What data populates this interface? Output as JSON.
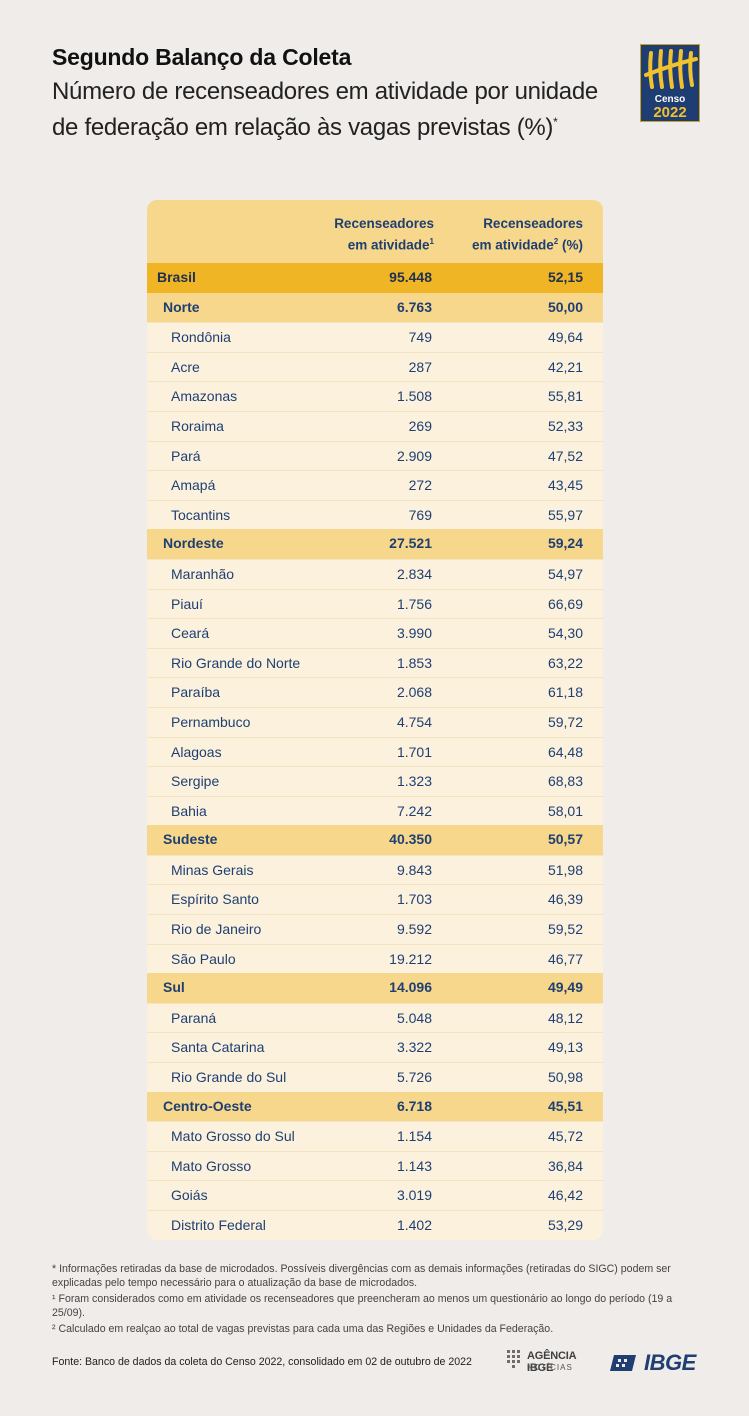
{
  "header": {
    "title": "Segundo Balanço da Coleta",
    "subtitle_line1": "Número de recenseadores em atividade por unidade",
    "subtitle_line2": "de federação em relação às vagas previstas (%)",
    "subtitle_mark": "*"
  },
  "logo": {
    "text": "Censo",
    "year": "2022"
  },
  "chart_data": {
    "type": "table",
    "columns": [
      {
        "label": "Recenseadores",
        "label2": "em atividade",
        "mark": "1",
        "suffix": ""
      },
      {
        "label": "Recenseadores",
        "label2": "em atividade",
        "mark": "2",
        "suffix": " (%)"
      }
    ],
    "rows": [
      {
        "level": "country",
        "name": "Brasil",
        "v1": "95.448",
        "v2": "52,15"
      },
      {
        "level": "region",
        "name": "Norte",
        "v1": "6.763",
        "v2": "50,00"
      },
      {
        "level": "state",
        "name": "Rondônia",
        "v1": "749",
        "v2": "49,64"
      },
      {
        "level": "state",
        "name": "Acre",
        "v1": "287",
        "v2": "42,21"
      },
      {
        "level": "state",
        "name": "Amazonas",
        "v1": "1.508",
        "v2": "55,81"
      },
      {
        "level": "state",
        "name": "Roraima",
        "v1": "269",
        "v2": "52,33"
      },
      {
        "level": "state",
        "name": "Pará",
        "v1": "2.909",
        "v2": "47,52"
      },
      {
        "level": "state",
        "name": "Amapá",
        "v1": "272",
        "v2": "43,45"
      },
      {
        "level": "state",
        "name": "Tocantins",
        "v1": "769",
        "v2": "55,97"
      },
      {
        "level": "region",
        "name": "Nordeste",
        "v1": "27.521",
        "v2": "59,24"
      },
      {
        "level": "state",
        "name": "Maranhão",
        "v1": "2.834",
        "v2": "54,97"
      },
      {
        "level": "state",
        "name": "Piauí",
        "v1": "1.756",
        "v2": "66,69"
      },
      {
        "level": "state",
        "name": "Ceará",
        "v1": "3.990",
        "v2": "54,30"
      },
      {
        "level": "state",
        "name": "Rio Grande do Norte",
        "v1": "1.853",
        "v2": "63,22"
      },
      {
        "level": "state",
        "name": "Paraíba",
        "v1": "2.068",
        "v2": "61,18"
      },
      {
        "level": "state",
        "name": "Pernambuco",
        "v1": "4.754",
        "v2": "59,72"
      },
      {
        "level": "state",
        "name": "Alagoas",
        "v1": "1.701",
        "v2": "64,48"
      },
      {
        "level": "state",
        "name": "Sergipe",
        "v1": "1.323",
        "v2": "68,83"
      },
      {
        "level": "state",
        "name": "Bahia",
        "v1": "7.242",
        "v2": "58,01"
      },
      {
        "level": "region",
        "name": "Sudeste",
        "v1": "40.350",
        "v2": "50,57"
      },
      {
        "level": "state",
        "name": "Minas Gerais",
        "v1": "9.843",
        "v2": "51,98"
      },
      {
        "level": "state",
        "name": "Espírito Santo",
        "v1": "1.703",
        "v2": "46,39"
      },
      {
        "level": "state",
        "name": "Rio de Janeiro",
        "v1": "9.592",
        "v2": "59,52"
      },
      {
        "level": "state",
        "name": "São Paulo",
        "v1": "19.212",
        "v2": "46,77"
      },
      {
        "level": "region",
        "name": "Sul",
        "v1": "14.096",
        "v2": "49,49"
      },
      {
        "level": "state",
        "name": "Paraná",
        "v1": "5.048",
        "v2": "48,12"
      },
      {
        "level": "state",
        "name": "Santa Catarina",
        "v1": "3.322",
        "v2": "49,13"
      },
      {
        "level": "state",
        "name": "Rio Grande do Sul",
        "v1": "5.726",
        "v2": "50,98"
      },
      {
        "level": "region",
        "name": "Centro-Oeste",
        "v1": "6.718",
        "v2": "45,51"
      },
      {
        "level": "state",
        "name": "Mato Grosso do Sul",
        "v1": "1.154",
        "v2": "45,72"
      },
      {
        "level": "state",
        "name": "Mato Grosso",
        "v1": "1.143",
        "v2": "36,84"
      },
      {
        "level": "state",
        "name": "Goiás",
        "v1": "3.019",
        "v2": "46,42"
      },
      {
        "level": "state",
        "name": "Distrito Federal",
        "v1": "1.402",
        "v2": "53,29"
      }
    ]
  },
  "notes": {
    "n0": "* Informações retiradas da base de microdados. Possíveis divergências com as demais informações (retiradas do SIGC) podem ser explicadas pelo tempo necessário para o atualização da base de microdados.",
    "n1": "¹ Foram considerados como em atividade os recenseadores que preencheram ao menos um questionário ao longo do período (19 a 25/09).",
    "n2": "² Calculado em realçao ao total de vagas previstas para cada uma das Regiões e Unidades da Federação."
  },
  "footer": {
    "source": "Fonte: Banco de dados da coleta do Censo 2022, consolidado em 02 de outubro de 2022",
    "agencia_main": "AGÊNCIA IBGE",
    "agencia_sub": "NOTÍCIAS",
    "ibge": "IBGE"
  },
  "colors": {
    "background": "#efecea",
    "table_bg": "#fbf1dc",
    "header_row": "#f6d78b",
    "country_row": "#efb525",
    "text_blue": "#1f3f73"
  }
}
